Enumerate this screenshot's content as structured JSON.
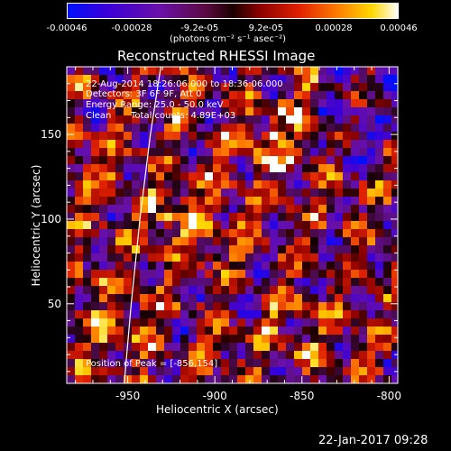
{
  "colorbar": {
    "tick_labels": [
      "-0.00046",
      "-0.00028",
      "-9.2e-05",
      "9.2e-05",
      "0.00028",
      "0.00046"
    ],
    "tick_values": [
      -0.00046,
      -0.00028,
      -9.2e-05,
      9.2e-05,
      0.00028,
      0.00046
    ],
    "units_label": "(photons cm⁻² s⁻¹ asec⁻²)",
    "range": [
      -0.00046,
      0.00046
    ]
  },
  "chart_data": {
    "type": "heatmap",
    "title": "Reconstructed RHESSI Image",
    "xlabel": "Heliocentric X (arcsec)",
    "ylabel": "Heliocentric Y (arcsec)",
    "xlim": [
      -985,
      -795
    ],
    "ylim": [
      3,
      190
    ],
    "xticks": [
      -950,
      -900,
      -850,
      -800
    ],
    "yticks": [
      50,
      100,
      150
    ],
    "xtick_labels": [
      "-950",
      "-900",
      "-850",
      "-800"
    ],
    "ytick_labels": [
      "50",
      "100",
      "150"
    ],
    "colormap": "blue-purple-red-yellow-white (signed flux)",
    "limb_curve": {
      "description": "solar limb line",
      "x_values": [
        -952,
        -948,
        -943,
        -937,
        -931
      ],
      "y_values": [
        3,
        50,
        100,
        150,
        190
      ]
    },
    "peak": {
      "x": -856,
      "y": 154
    },
    "annotations": [
      "22-Aug-2014 18:26:06.000 to 18:36:06.000",
      "Detectors: 3F 6F 9F, Att 0",
      "Energy Range: 25.0 - 50.0 keV",
      "Clean",
      "Total counts: 4.89E+03",
      "Position of Peak = [-856,154]"
    ]
  },
  "footer": {
    "date": "22-Jan-2017 09:28"
  }
}
